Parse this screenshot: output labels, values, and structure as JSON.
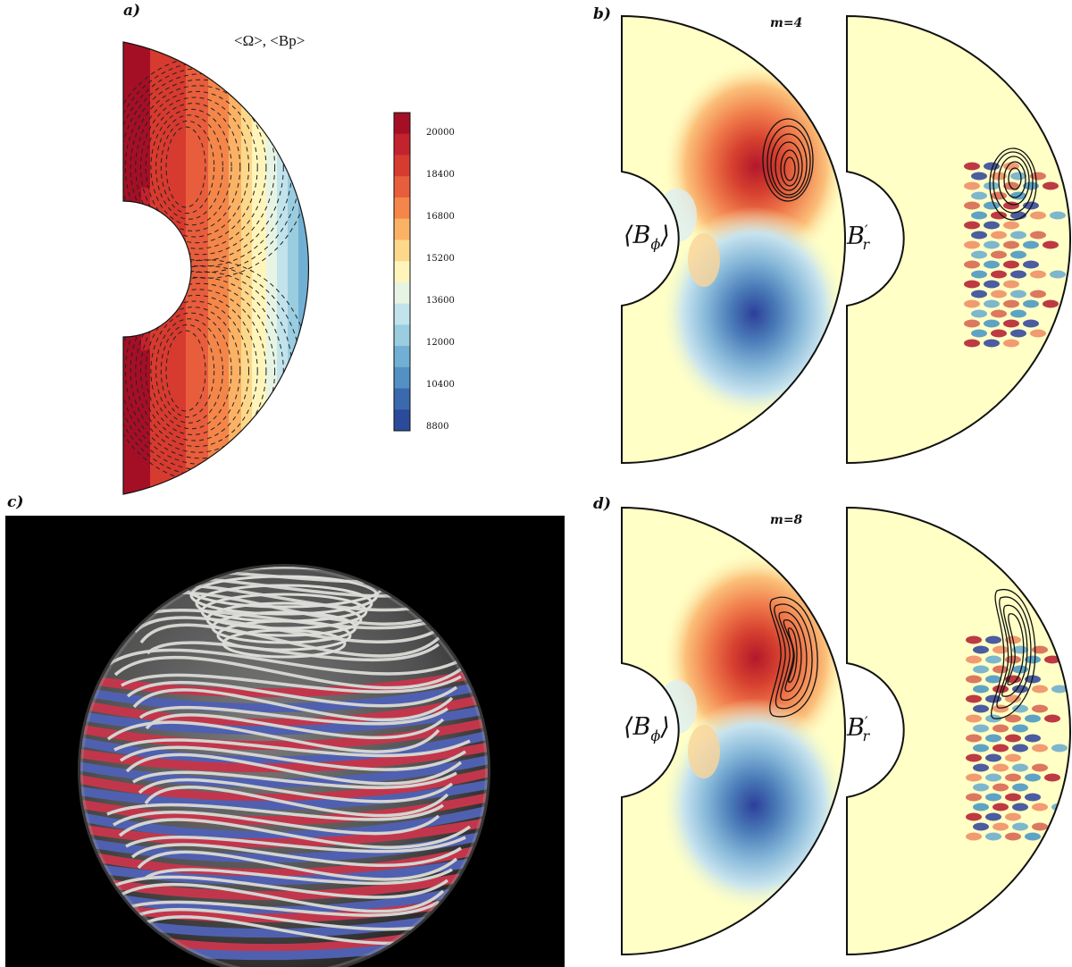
{
  "panels": {
    "a": {
      "label": "a)",
      "title": "<Ω>, <Bp>"
    },
    "b": {
      "label": "b)",
      "mode": "m=4",
      "left_field": "⟨B",
      "left_sub": "ϕ",
      "left_close": "⟩",
      "right_field": "B",
      "right_prime": "′",
      "right_sub": "r"
    },
    "c": {
      "label": "c)"
    },
    "d": {
      "label": "d)",
      "mode": "m=8",
      "left_field": "⟨B",
      "left_sub": "ϕ",
      "left_close": "⟩",
      "right_field": "B",
      "right_prime": "′",
      "right_sub": "r"
    }
  },
  "colorbar": {
    "ticks": [
      "20000",
      "18400",
      "16800",
      "15200",
      "13600",
      "12000",
      "10400",
      "8800"
    ],
    "colors": [
      "#a50f26",
      "#c3232c",
      "#d73a2f",
      "#e85d3c",
      "#f4864a",
      "#fbb265",
      "#fdd88b",
      "#fff5ba",
      "#e7f4e4",
      "#c2e3ec",
      "#9acde0",
      "#72b0d3",
      "#5390c3",
      "#3a6aae",
      "#2b4a9a"
    ]
  },
  "chart_data": {
    "type": "heatmap",
    "title": "<Ω>, <Bp>",
    "variable": "angular velocity Ω with poloidal field lines",
    "range": [
      8800,
      20800
    ],
    "colorbar_ticks": [
      20000,
      18400,
      16800,
      15200,
      13600,
      12000,
      10400,
      8800
    ]
  }
}
